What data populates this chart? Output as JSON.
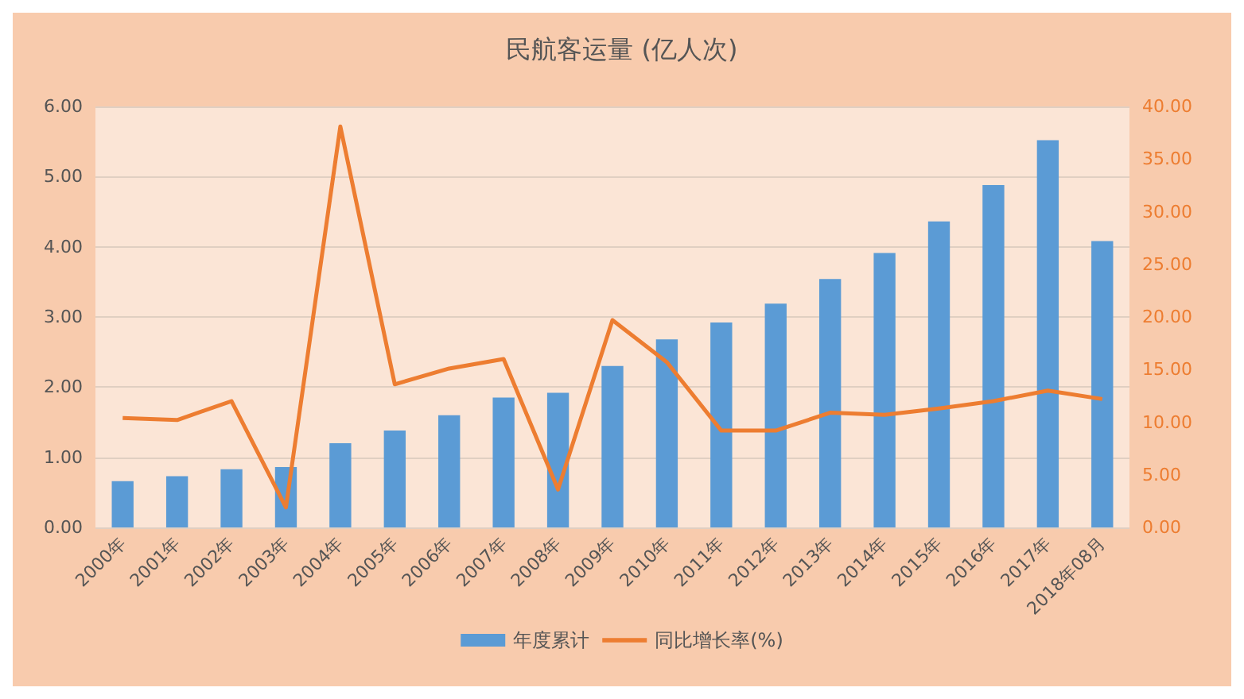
{
  "chart_data": {
    "type": "bar",
    "title": "民航客运量 (亿人次)",
    "categories": [
      "2000年",
      "2001年",
      "2002年",
      "2003年",
      "2004年",
      "2005年",
      "2006年",
      "2007年",
      "2008年",
      "2009年",
      "2010年",
      "2011年",
      "2012年",
      "2013年",
      "2014年",
      "2015年",
      "2016年",
      "2017年",
      "2018年08月"
    ],
    "series": [
      {
        "name": "年度累计",
        "color": "#5b9bd5",
        "values": [
          0.66,
          0.73,
          0.83,
          0.86,
          1.2,
          1.38,
          1.6,
          1.85,
          1.92,
          2.3,
          2.68,
          2.92,
          3.19,
          3.54,
          3.91,
          4.36,
          4.88,
          5.52,
          4.08
        ]
      },
      {
        "name": "同比增长率(%)",
        "type": "line",
        "axis": "y2",
        "color": "#ed7d31",
        "values": [
          10.4,
          10.2,
          12.0,
          1.9,
          38.1,
          13.6,
          15.1,
          16.0,
          3.6,
          19.7,
          15.7,
          9.2,
          9.2,
          10.9,
          10.7,
          11.3,
          12.0,
          13.0,
          12.2
        ]
      }
    ],
    "ylim": [
      0,
      6
    ],
    "yticks": [
      {
        "value": 0,
        "label": "0.00"
      },
      {
        "value": 1,
        "label": "1.00"
      },
      {
        "value": 2,
        "label": "2.00"
      },
      {
        "value": 3,
        "label": "3.00"
      },
      {
        "value": 4,
        "label": "4.00"
      },
      {
        "value": 5,
        "label": "5.00"
      },
      {
        "value": 6,
        "label": "6.00"
      }
    ],
    "y2lim": [
      0,
      40
    ],
    "y2ticks": [
      {
        "value": 0,
        "label": "0.00"
      },
      {
        "value": 5,
        "label": "5.00"
      },
      {
        "value": 10,
        "label": "10.00"
      },
      {
        "value": 15,
        "label": "15.00"
      },
      {
        "value": 20,
        "label": "20.00"
      },
      {
        "value": 25,
        "label": "25.00"
      },
      {
        "value": 30,
        "label": "30.00"
      },
      {
        "value": 35,
        "label": "35.00"
      },
      {
        "value": 40,
        "label": "40.00"
      }
    ],
    "grid": "y",
    "legend": "bottom",
    "marker": "none",
    "line_style": "solid"
  }
}
